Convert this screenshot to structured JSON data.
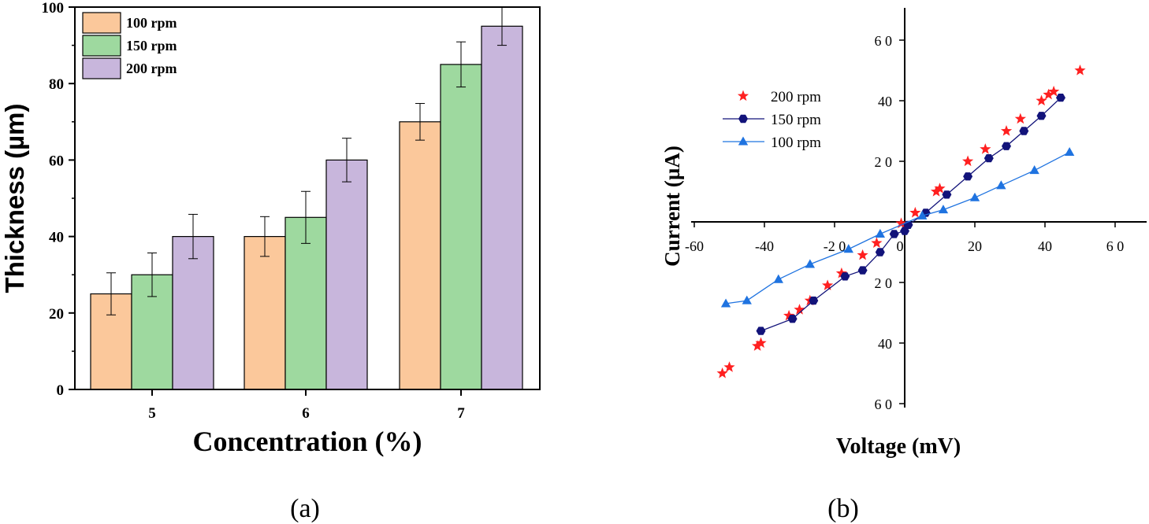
{
  "chart_data": [
    {
      "panel_label": "(a)",
      "type": "bar",
      "xlabel": "Concentration (%)",
      "ylabel": "Thickness (µm)",
      "ylim": [
        0,
        100
      ],
      "y_ticks": [
        "0",
        "20",
        "40",
        "60",
        "80",
        "100"
      ],
      "categories": [
        "5",
        "6",
        "7"
      ],
      "legend_position": "top-left",
      "series": [
        {
          "name": "100 rpm",
          "color": "#fbc89b",
          "values": [
            25,
            40,
            70
          ],
          "errors": [
            5.5,
            5.2,
            4.8
          ]
        },
        {
          "name": "150 rpm",
          "color": "#9ed99f",
          "values": [
            30,
            45,
            85
          ],
          "errors": [
            5.7,
            6.8,
            5.9
          ]
        },
        {
          "name": "200 rpm",
          "color": "#c8b6dc",
          "values": [
            40,
            60,
            95
          ],
          "errors": [
            5.8,
            5.7,
            5.0
          ]
        }
      ]
    },
    {
      "panel_label": "(b)",
      "type": "scatter",
      "xlabel": "Voltage (mV)",
      "ylabel": "Current (µA)",
      "xlim": [
        -62,
        72
      ],
      "ylim": [
        -62,
        70
      ],
      "x_ticks": [
        {
          "value": -60,
          "label": "-60"
        },
        {
          "value": -40,
          "label": "-40"
        },
        {
          "value": -20,
          "label": "-2 0"
        },
        {
          "value": 0,
          "label": "0"
        },
        {
          "value": 20,
          "label": "20"
        },
        {
          "value": 40,
          "label": "40"
        },
        {
          "value": 60,
          "label": "6 0"
        }
      ],
      "y_ticks": [
        {
          "value": 60,
          "label": "6 0"
        },
        {
          "value": 40,
          "label": "40"
        },
        {
          "value": 20,
          "label": "2 0"
        },
        {
          "value": -20,
          "label": "2 0"
        },
        {
          "value": -40,
          "label": "40"
        },
        {
          "value": -60,
          "label": "6 0"
        }
      ],
      "legend_position": "top-left",
      "series": [
        {
          "name": "200 rpm",
          "color": "#ff2020",
          "marker": "star",
          "line": false,
          "x": [
            -52,
            -50,
            -42,
            -41,
            -33,
            -30,
            -27,
            -22,
            -18,
            -12,
            -8,
            -1,
            3,
            9,
            10,
            18,
            23,
            29,
            33,
            39,
            41,
            42.5,
            50
          ],
          "y": [
            -50,
            -48,
            -41,
            -40,
            -31,
            -29,
            -26,
            -21,
            -17,
            -11,
            -7,
            -0.5,
            3,
            10,
            11,
            20,
            24,
            30,
            34,
            40,
            42,
            43,
            50
          ]
        },
        {
          "name": "150 rpm",
          "color": "#12137a",
          "marker": "hexagon",
          "line": true,
          "x": [
            -41,
            -32,
            -26,
            -17,
            -12,
            -7,
            -3,
            0,
            1,
            6,
            12,
            18,
            24,
            29,
            34,
            39,
            44.5
          ],
          "y": [
            -36,
            -32,
            -26,
            -18,
            -16,
            -10,
            -4,
            -3,
            -1,
            3,
            9,
            15,
            21,
            25,
            30,
            35,
            41
          ]
        },
        {
          "name": "100 rpm",
          "color": "#1f73e0",
          "marker": "triangle",
          "line": true,
          "x": [
            -51,
            -45,
            -36,
            -27,
            -16,
            -7,
            5,
            11,
            20,
            27.5,
            37,
            47
          ],
          "y": [
            -27,
            -26,
            -19,
            -14,
            -9,
            -4,
            2,
            4,
            8,
            12,
            17,
            23
          ]
        }
      ]
    }
  ]
}
